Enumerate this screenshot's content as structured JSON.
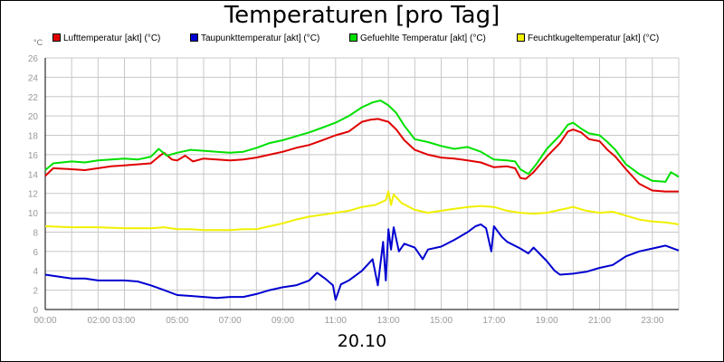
{
  "chart_data": {
    "type": "line",
    "title": "Temperaturen [pro Tag]",
    "date_label": "20.10",
    "y_unit": "°C",
    "ylim": [
      0,
      26
    ],
    "y_ticks": [
      0,
      2,
      4,
      6,
      8,
      10,
      12,
      14,
      16,
      18,
      20,
      22,
      24,
      26
    ],
    "xlim_hours": [
      0,
      24
    ],
    "x_ticks": [
      {
        "label": "00:00",
        "hour": 0
      },
      {
        "label": "02:00 03:00",
        "hour": 2.5
      },
      {
        "label": "05:00",
        "hour": 5
      },
      {
        "label": "07:00",
        "hour": 7
      },
      {
        "label": "09:00",
        "hour": 9
      },
      {
        "label": "11:00",
        "hour": 11
      },
      {
        "label": "13:00",
        "hour": 13
      },
      {
        "label": "15:00",
        "hour": 15
      },
      {
        "label": "17:00",
        "hour": 17
      },
      {
        "label": "19:00",
        "hour": 19
      },
      {
        "label": "21:00",
        "hour": 21
      },
      {
        "label": "23:00",
        "hour": 23
      }
    ],
    "grid": true,
    "legend_position": "top",
    "series": [
      {
        "name": "Lufttemperatur [akt] (°C)",
        "color": "#e00000",
        "points": [
          [
            0,
            13.8
          ],
          [
            0.3,
            14.6
          ],
          [
            1,
            14.5
          ],
          [
            1.5,
            14.4
          ],
          [
            2,
            14.6
          ],
          [
            2.5,
            14.8
          ],
          [
            3,
            14.9
          ],
          [
            3.5,
            15.0
          ],
          [
            4,
            15.1
          ],
          [
            4.3,
            15.8
          ],
          [
            4.5,
            16.2
          ],
          [
            4.8,
            15.5
          ],
          [
            5,
            15.4
          ],
          [
            5.3,
            15.9
          ],
          [
            5.6,
            15.3
          ],
          [
            6,
            15.6
          ],
          [
            6.5,
            15.5
          ],
          [
            7,
            15.4
          ],
          [
            7.5,
            15.5
          ],
          [
            8,
            15.7
          ],
          [
            8.5,
            16.0
          ],
          [
            9,
            16.3
          ],
          [
            9.5,
            16.7
          ],
          [
            10,
            17.0
          ],
          [
            10.5,
            17.5
          ],
          [
            11,
            18.0
          ],
          [
            11.5,
            18.4
          ],
          [
            12,
            19.4
          ],
          [
            12.3,
            19.6
          ],
          [
            12.6,
            19.7
          ],
          [
            13,
            19.4
          ],
          [
            13.3,
            18.6
          ],
          [
            13.6,
            17.5
          ],
          [
            14,
            16.5
          ],
          [
            14.5,
            16.0
          ],
          [
            15,
            15.7
          ],
          [
            15.5,
            15.6
          ],
          [
            16,
            15.4
          ],
          [
            16.5,
            15.2
          ],
          [
            17,
            14.7
          ],
          [
            17.5,
            14.8
          ],
          [
            17.8,
            14.6
          ],
          [
            18,
            13.6
          ],
          [
            18.2,
            13.5
          ],
          [
            18.5,
            14.2
          ],
          [
            19,
            15.8
          ],
          [
            19.5,
            17.2
          ],
          [
            19.8,
            18.4
          ],
          [
            20,
            18.6
          ],
          [
            20.3,
            18.3
          ],
          [
            20.6,
            17.6
          ],
          [
            21,
            17.4
          ],
          [
            21.3,
            16.5
          ],
          [
            21.6,
            15.8
          ],
          [
            22,
            14.5
          ],
          [
            22.5,
            13.0
          ],
          [
            23,
            12.3
          ],
          [
            23.5,
            12.2
          ],
          [
            24,
            12.2
          ]
        ]
      },
      {
        "name": "Taupunkttemperatur [akt] (°C)",
        "color": "#0000d0",
        "points": [
          [
            0,
            3.6
          ],
          [
            0.5,
            3.4
          ],
          [
            1,
            3.2
          ],
          [
            1.5,
            3.2
          ],
          [
            2,
            3.0
          ],
          [
            2.5,
            3.0
          ],
          [
            3,
            3.0
          ],
          [
            3.5,
            2.9
          ],
          [
            4,
            2.5
          ],
          [
            4.5,
            2.0
          ],
          [
            5,
            1.5
          ],
          [
            5.5,
            1.4
          ],
          [
            6,
            1.3
          ],
          [
            6.5,
            1.2
          ],
          [
            7,
            1.3
          ],
          [
            7.5,
            1.3
          ],
          [
            8,
            1.6
          ],
          [
            8.5,
            2.0
          ],
          [
            9,
            2.3
          ],
          [
            9.5,
            2.5
          ],
          [
            10,
            3.0
          ],
          [
            10.3,
            3.8
          ],
          [
            10.6,
            3.2
          ],
          [
            10.9,
            2.5
          ],
          [
            11,
            1.0
          ],
          [
            11.2,
            2.6
          ],
          [
            11.5,
            3.0
          ],
          [
            12,
            4.0
          ],
          [
            12.4,
            5.2
          ],
          [
            12.6,
            2.5
          ],
          [
            12.8,
            7.0
          ],
          [
            12.9,
            3.0
          ],
          [
            13.0,
            8.3
          ],
          [
            13.1,
            6.2
          ],
          [
            13.2,
            8.5
          ],
          [
            13.4,
            6.0
          ],
          [
            13.6,
            6.8
          ],
          [
            14,
            6.4
          ],
          [
            14.3,
            5.2
          ],
          [
            14.5,
            6.2
          ],
          [
            15,
            6.5
          ],
          [
            15.5,
            7.2
          ],
          [
            16,
            8.0
          ],
          [
            16.3,
            8.6
          ],
          [
            16.5,
            8.8
          ],
          [
            16.7,
            8.4
          ],
          [
            16.9,
            6.0
          ],
          [
            17,
            8.6
          ],
          [
            17.3,
            7.5
          ],
          [
            17.5,
            7.0
          ],
          [
            18,
            6.3
          ],
          [
            18.3,
            5.8
          ],
          [
            18.5,
            6.4
          ],
          [
            19,
            5.0
          ],
          [
            19.3,
            4.0
          ],
          [
            19.5,
            3.6
          ],
          [
            20,
            3.7
          ],
          [
            20.5,
            3.9
          ],
          [
            21,
            4.3
          ],
          [
            21.5,
            4.6
          ],
          [
            22,
            5.5
          ],
          [
            22.5,
            6.0
          ],
          [
            23,
            6.3
          ],
          [
            23.5,
            6.6
          ],
          [
            24,
            6.1
          ]
        ]
      },
      {
        "name": "Gefuehlte Temperatur [akt] (°C)",
        "color": "#00e000",
        "points": [
          [
            0,
            14.4
          ],
          [
            0.3,
            15.1
          ],
          [
            1,
            15.3
          ],
          [
            1.5,
            15.2
          ],
          [
            2,
            15.4
          ],
          [
            2.5,
            15.5
          ],
          [
            3,
            15.6
          ],
          [
            3.5,
            15.5
          ],
          [
            4,
            15.8
          ],
          [
            4.3,
            16.6
          ],
          [
            4.6,
            15.9
          ],
          [
            5,
            16.2
          ],
          [
            5.5,
            16.5
          ],
          [
            6,
            16.4
          ],
          [
            6.5,
            16.3
          ],
          [
            7,
            16.2
          ],
          [
            7.5,
            16.3
          ],
          [
            8,
            16.7
          ],
          [
            8.5,
            17.2
          ],
          [
            9,
            17.5
          ],
          [
            9.5,
            17.9
          ],
          [
            10,
            18.3
          ],
          [
            10.5,
            18.8
          ],
          [
            11,
            19.3
          ],
          [
            11.5,
            20.0
          ],
          [
            12,
            20.9
          ],
          [
            12.4,
            21.4
          ],
          [
            12.7,
            21.6
          ],
          [
            13,
            21.1
          ],
          [
            13.3,
            20.3
          ],
          [
            13.6,
            19.0
          ],
          [
            14,
            17.6
          ],
          [
            14.5,
            17.3
          ],
          [
            15,
            16.9
          ],
          [
            15.5,
            16.6
          ],
          [
            16,
            16.8
          ],
          [
            16.5,
            16.3
          ],
          [
            17,
            15.5
          ],
          [
            17.5,
            15.4
          ],
          [
            17.8,
            15.3
          ],
          [
            18,
            14.5
          ],
          [
            18.3,
            14.0
          ],
          [
            18.6,
            15.0
          ],
          [
            19,
            16.6
          ],
          [
            19.5,
            18.0
          ],
          [
            19.8,
            19.1
          ],
          [
            20,
            19.3
          ],
          [
            20.3,
            18.7
          ],
          [
            20.6,
            18.2
          ],
          [
            21,
            18.0
          ],
          [
            21.3,
            17.3
          ],
          [
            21.6,
            16.5
          ],
          [
            22,
            15.0
          ],
          [
            22.5,
            14.0
          ],
          [
            23,
            13.3
          ],
          [
            23.5,
            13.2
          ],
          [
            23.7,
            14.2
          ],
          [
            24,
            13.7
          ]
        ]
      },
      {
        "name": "Feuchtkugeltemperatur [akt] (°C)",
        "color": "#f0f000",
        "points": [
          [
            0,
            8.6
          ],
          [
            1,
            8.5
          ],
          [
            2,
            8.5
          ],
          [
            3,
            8.4
          ],
          [
            4,
            8.4
          ],
          [
            4.5,
            8.5
          ],
          [
            5,
            8.3
          ],
          [
            5.5,
            8.3
          ],
          [
            6,
            8.2
          ],
          [
            6.5,
            8.2
          ],
          [
            7,
            8.2
          ],
          [
            7.5,
            8.3
          ],
          [
            8,
            8.3
          ],
          [
            8.5,
            8.6
          ],
          [
            9,
            8.9
          ],
          [
            9.5,
            9.3
          ],
          [
            10,
            9.6
          ],
          [
            10.5,
            9.8
          ],
          [
            11,
            10.0
          ],
          [
            11.5,
            10.2
          ],
          [
            12,
            10.6
          ],
          [
            12.5,
            10.8
          ],
          [
            12.9,
            11.3
          ],
          [
            13.0,
            12.2
          ],
          [
            13.1,
            10.8
          ],
          [
            13.2,
            11.9
          ],
          [
            13.5,
            11.0
          ],
          [
            14,
            10.3
          ],
          [
            14.5,
            10.0
          ],
          [
            15,
            10.2
          ],
          [
            15.5,
            10.4
          ],
          [
            16,
            10.6
          ],
          [
            16.5,
            10.7
          ],
          [
            17,
            10.6
          ],
          [
            17.5,
            10.2
          ],
          [
            18,
            10.0
          ],
          [
            18.5,
            9.9
          ],
          [
            19,
            10.0
          ],
          [
            19.5,
            10.3
          ],
          [
            20,
            10.6
          ],
          [
            20.5,
            10.2
          ],
          [
            21,
            10.0
          ],
          [
            21.5,
            10.1
          ],
          [
            22,
            9.7
          ],
          [
            22.5,
            9.3
          ],
          [
            23,
            9.1
          ],
          [
            23.5,
            9.0
          ],
          [
            24,
            8.8
          ]
        ]
      }
    ]
  }
}
